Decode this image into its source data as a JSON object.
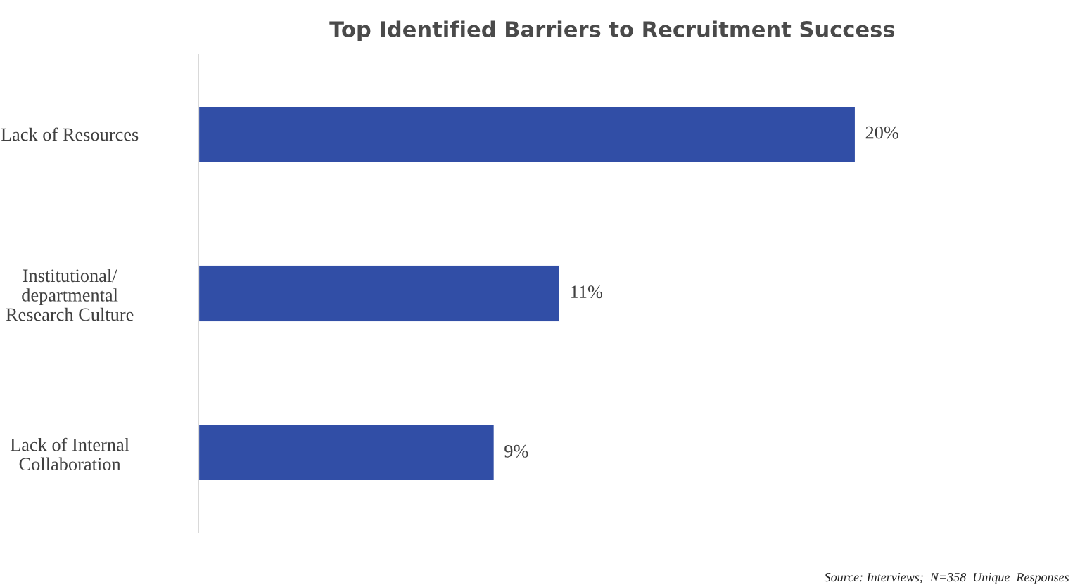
{
  "chart_data": {
    "type": "bar",
    "orientation": "horizontal",
    "title": "Top Identified Barriers to Recruitment Success",
    "categories": [
      "Lack of Resources",
      "Institutional/\ndepartmental\nResearch Culture",
      "Lack of Internal\nCollaboration"
    ],
    "values": [
      20,
      11,
      9
    ],
    "value_labels": [
      "20%",
      "11%",
      "9%"
    ],
    "color": "#314ea6",
    "annotations": [
      "Source: Interviews;  N=358  Unique  Responses"
    ],
    "tick_labels": "y",
    "grid": false,
    "legend": false
  }
}
